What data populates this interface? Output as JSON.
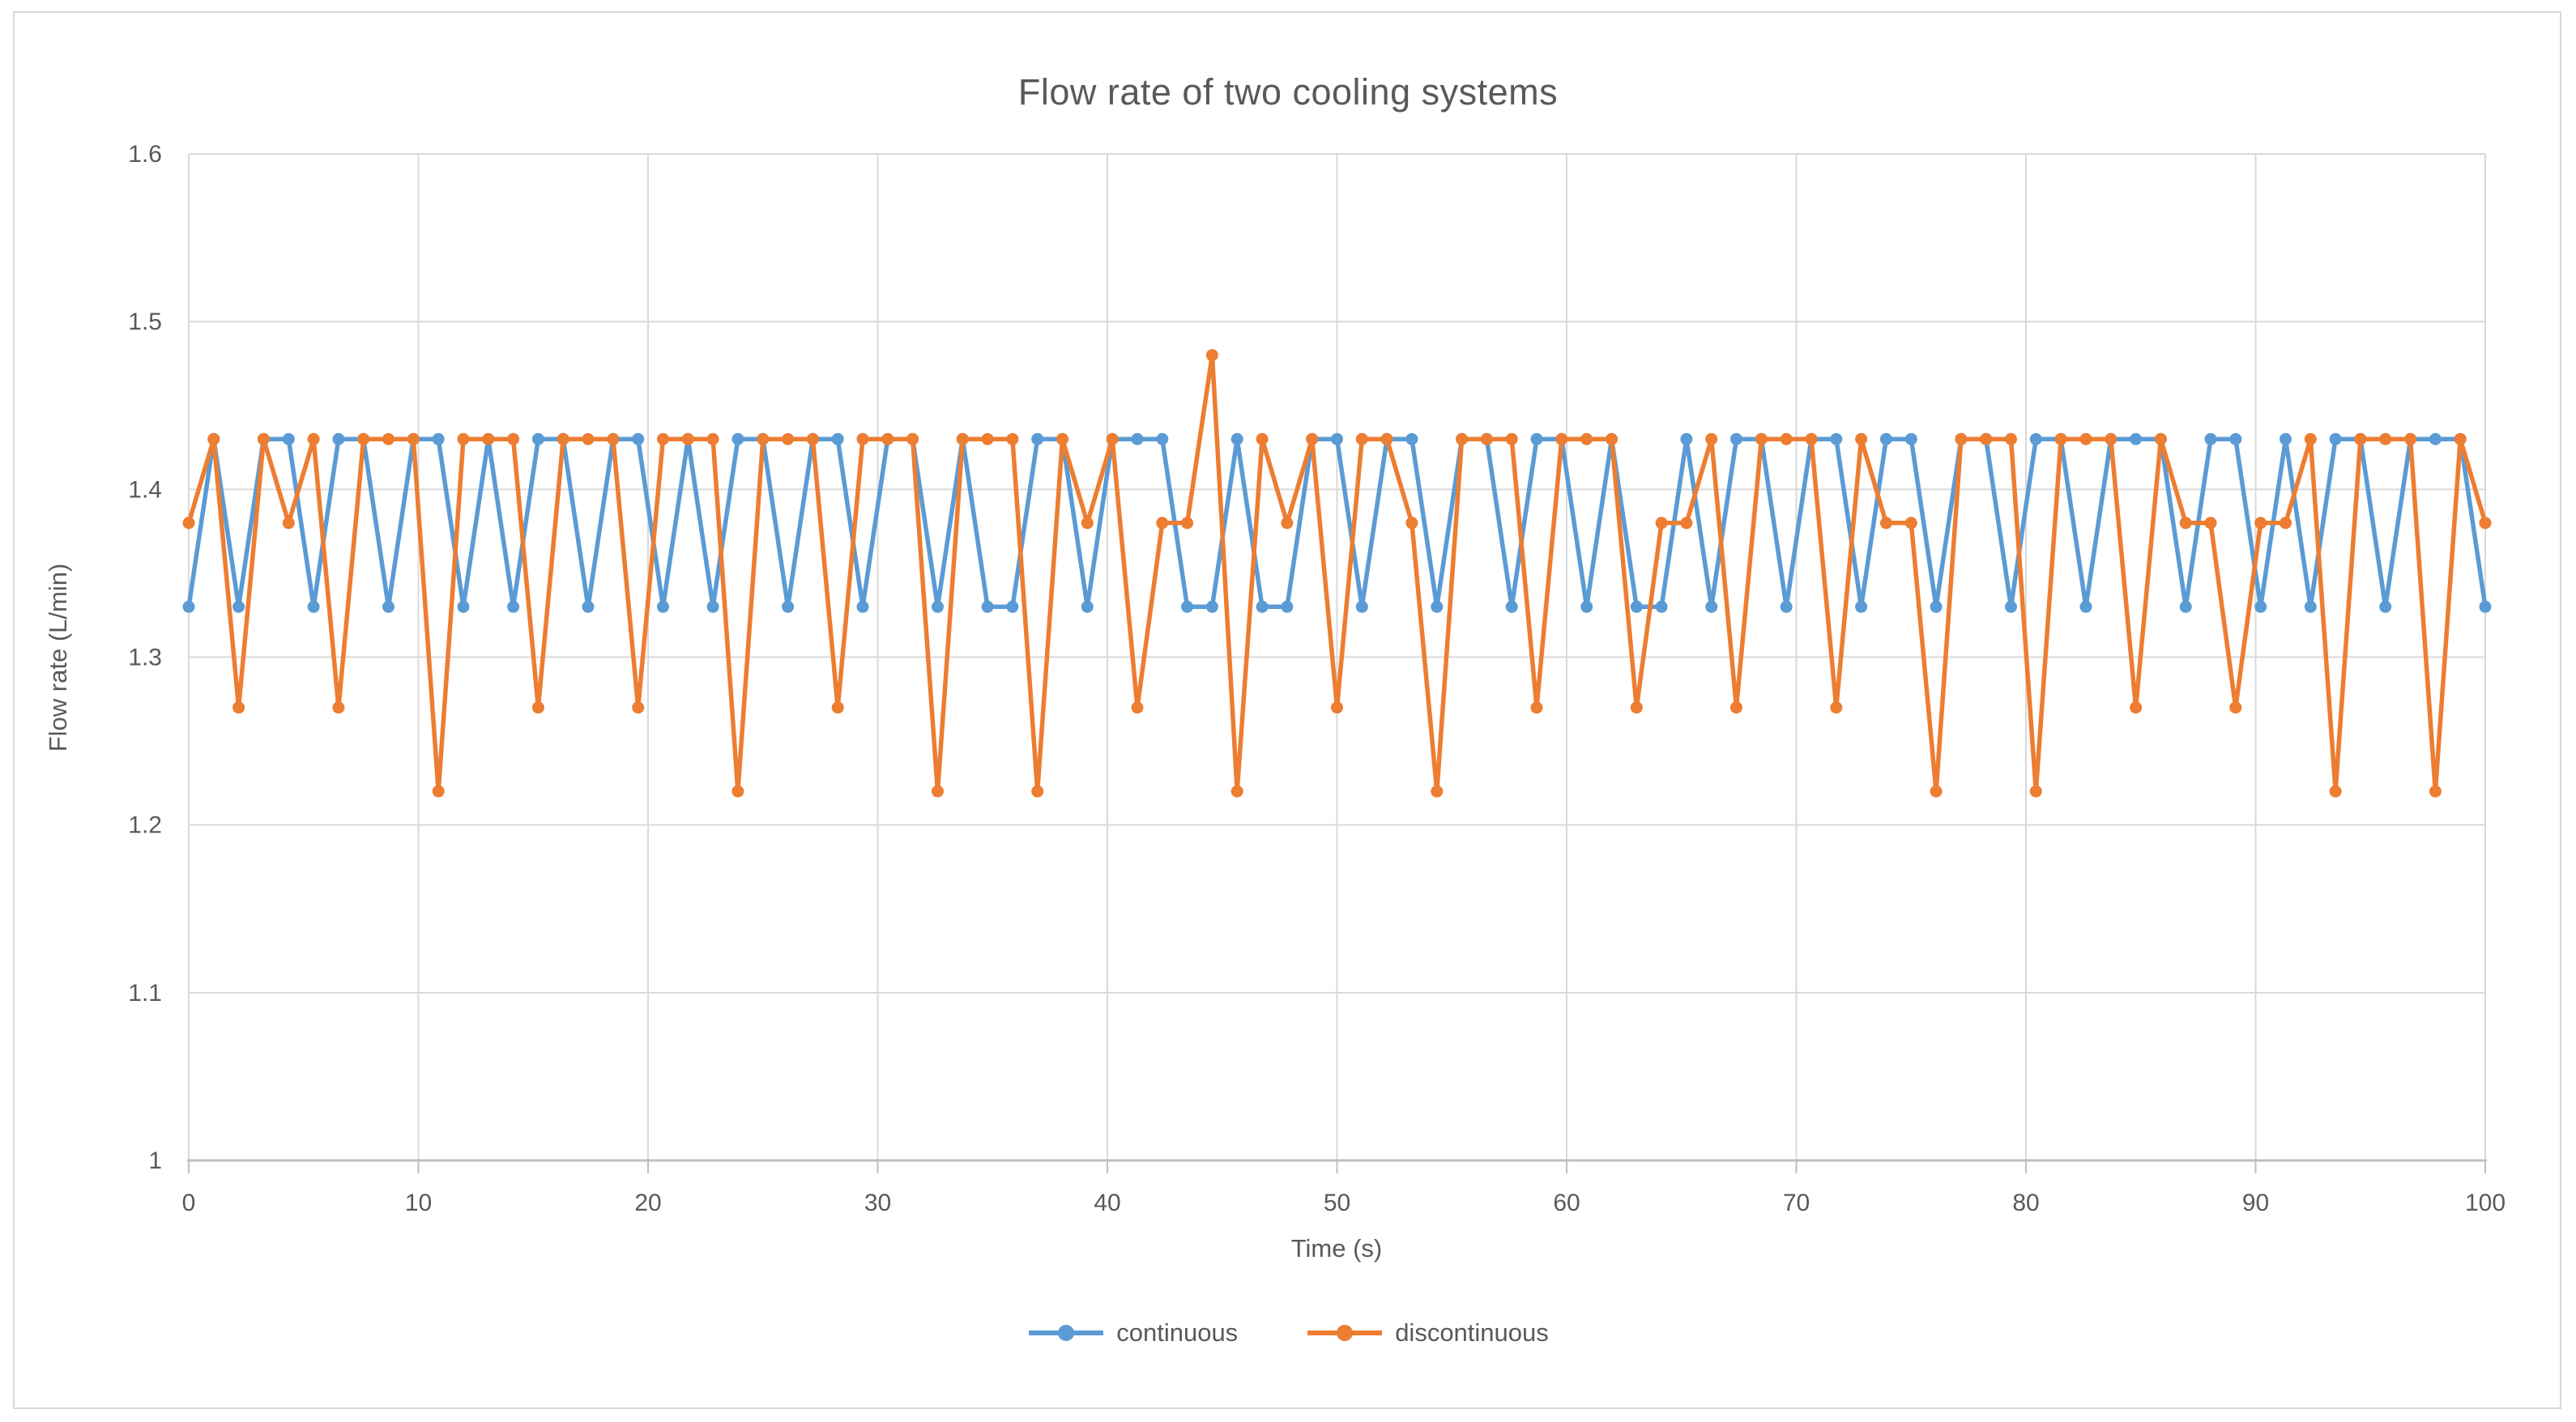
{
  "window": {
    "background": "#ffffff",
    "frame_border_color": "#D9D9D9"
  },
  "chart_data": {
    "type": "line",
    "title": "Flow rate of two cooling systems",
    "xlabel": "Time (s)",
    "ylabel": "Flow rate (L/min)",
    "grid": true,
    "legend_position": "bottom-center",
    "x_axis": {
      "min": 0,
      "max": 100,
      "tick_step": 10,
      "tick_labels": [
        "0",
        "10",
        "20",
        "30",
        "40",
        "50",
        "60",
        "70",
        "80",
        "90",
        "100"
      ]
    },
    "y_axis": {
      "min": 1.0,
      "max": 1.6,
      "tick_step": 0.1,
      "tick_labels": [
        "1",
        "1.1",
        "1.2",
        "1.3",
        "1.4",
        "1.5",
        "1.6"
      ]
    },
    "n_points": 93,
    "x_rule": "93 samples evenly spaced from t=0 s to t=100 s (interval about 1.087 s)",
    "observed_levels": [
      1.22,
      1.27,
      1.33,
      1.38,
      1.43,
      1.48
    ],
    "series": [
      {
        "name": "continuous",
        "color": "#5B9BD5",
        "marker": "circle",
        "values": [
          1.33,
          1.43,
          1.33,
          1.43,
          1.43,
          1.33,
          1.43,
          1.43,
          1.33,
          1.43,
          1.43,
          1.33,
          1.43,
          1.33,
          1.43,
          1.43,
          1.33,
          1.43,
          1.43,
          1.33,
          1.43,
          1.33,
          1.43,
          1.43,
          1.33,
          1.43,
          1.43,
          1.33,
          1.43,
          1.43,
          1.33,
          1.43,
          1.33,
          1.33,
          1.43,
          1.43,
          1.33,
          1.43,
          1.43,
          1.43,
          1.33,
          1.33,
          1.43,
          1.33,
          1.33,
          1.43,
          1.43,
          1.33,
          1.43,
          1.43,
          1.33,
          1.43,
          1.43,
          1.33,
          1.43,
          1.43,
          1.33,
          1.43,
          1.33,
          1.33,
          1.43,
          1.33,
          1.43,
          1.43,
          1.33,
          1.43,
          1.43,
          1.33,
          1.43,
          1.43,
          1.33,
          1.43,
          1.43,
          1.33,
          1.43,
          1.43,
          1.33,
          1.43,
          1.43,
          1.43,
          1.33,
          1.43,
          1.43,
          1.33,
          1.43,
          1.33,
          1.43,
          1.43,
          1.33,
          1.43,
          1.43,
          1.43,
          1.33
        ]
      },
      {
        "name": "discontinuous",
        "color": "#ED7D31",
        "marker": "circle",
        "values": [
          1.38,
          1.43,
          1.27,
          1.43,
          1.38,
          1.43,
          1.27,
          1.43,
          1.43,
          1.43,
          1.22,
          1.43,
          1.43,
          1.43,
          1.27,
          1.43,
          1.43,
          1.43,
          1.27,
          1.43,
          1.43,
          1.43,
          1.22,
          1.43,
          1.43,
          1.43,
          1.27,
          1.43,
          1.43,
          1.43,
          1.22,
          1.43,
          1.43,
          1.43,
          1.22,
          1.43,
          1.38,
          1.43,
          1.27,
          1.38,
          1.38,
          1.48,
          1.22,
          1.43,
          1.38,
          1.43,
          1.27,
          1.43,
          1.43,
          1.38,
          1.22,
          1.43,
          1.43,
          1.43,
          1.27,
          1.43,
          1.43,
          1.43,
          1.27,
          1.38,
          1.38,
          1.43,
          1.27,
          1.43,
          1.43,
          1.43,
          1.27,
          1.43,
          1.38,
          1.38,
          1.22,
          1.43,
          1.43,
          1.43,
          1.22,
          1.43,
          1.43,
          1.43,
          1.27,
          1.43,
          1.38,
          1.38,
          1.27,
          1.38,
          1.38,
          1.43,
          1.22,
          1.43,
          1.43,
          1.43,
          1.22,
          1.43,
          1.38
        ]
      }
    ],
    "colors": {
      "gridline": "#D9D9D9",
      "axis_line": "#BFBFBF",
      "text": "#595959"
    }
  },
  "legend": {
    "items": [
      {
        "label": "continuous",
        "color": "#5B9BD5"
      },
      {
        "label": "discontinuous",
        "color": "#ED7D31"
      }
    ]
  }
}
